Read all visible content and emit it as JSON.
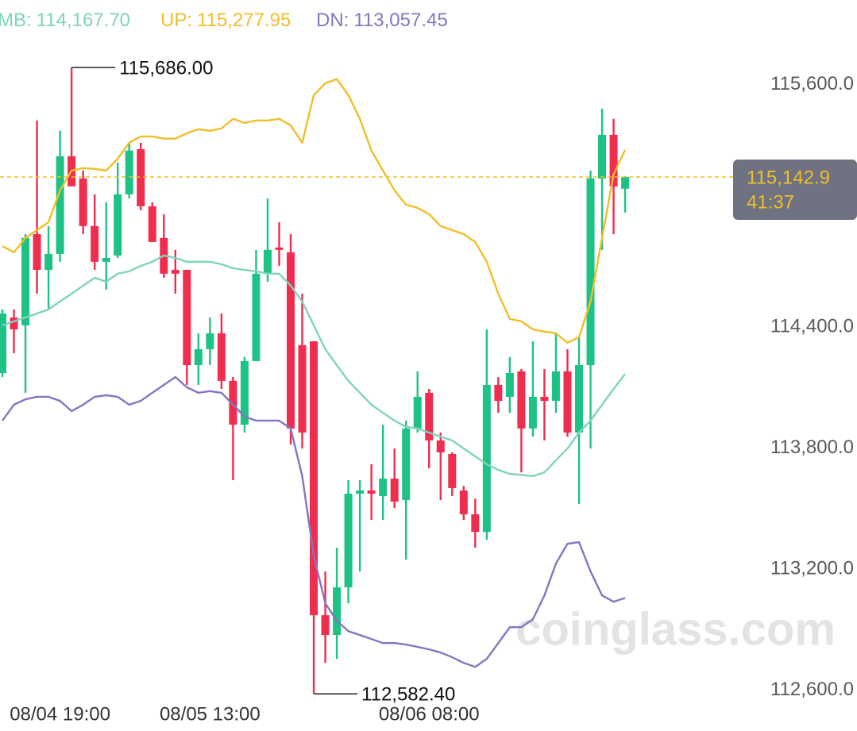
{
  "chart_data": {
    "type": "candlestick",
    "categories": [
      null,
      null,
      null,
      null,
      null,
      "08/04 19:00",
      null,
      null,
      null,
      null,
      null,
      null,
      null,
      null,
      null,
      null,
      null,
      null,
      "08/05 13:00",
      null,
      null,
      null,
      null,
      null,
      null,
      null,
      null,
      null,
      null,
      null,
      null,
      null,
      null,
      null,
      null,
      null,
      null,
      "08/06 08:00",
      null,
      null,
      null,
      null,
      null,
      null,
      null,
      null,
      null,
      null,
      null,
      null,
      null,
      null,
      null,
      null,
      null
    ],
    "open": [
      114172,
      114447,
      114408,
      114860,
      114683,
      114762,
      115246,
      115136,
      114900,
      114723,
      114754,
      115057,
      115281,
      114998,
      114841,
      114683,
      114683,
      114211,
      114290,
      114369,
      114133,
      113916,
      114231,
      114664,
      114794,
      114770,
      114310,
      114329,
      112972,
      112874,
      113110,
      113574,
      113590,
      113562,
      113649,
      113543,
      113897,
      114074,
      113838,
      113771,
      113590,
      113472,
      113385,
      114113,
      114054,
      114180,
      113897,
      114054,
      114034,
      114180,
      113877,
      114211,
      115136,
      115352,
      115085
    ],
    "high": [
      114487,
      114487,
      114860,
      115423,
      114900,
      115372,
      115686,
      115175,
      115057,
      115018,
      115215,
      115313,
      115313,
      115018,
      114959,
      114782,
      114683,
      114369,
      114447,
      114467,
      114152,
      114251,
      114782,
      115037,
      114919,
      114860,
      114565,
      114329,
      113189,
      113307,
      113641,
      113641,
      113720,
      113916,
      113798,
      113936,
      114180,
      114093,
      113877,
      113779,
      113613,
      113550,
      114388,
      114152,
      114251,
      114192,
      114329,
      114192,
      114369,
      114290,
      114349,
      115175,
      115482,
      115431,
      115148
    ],
    "low": [
      114152,
      114270,
      114074,
      114565,
      114487,
      114723,
      115097,
      114860,
      114683,
      114585,
      114742,
      115037,
      114978,
      114821,
      114644,
      114565,
      114113,
      114113,
      114211,
      114093,
      113641,
      113877,
      114231,
      114624,
      114703,
      113818,
      113798,
      112582.4,
      112736,
      112756,
      113031,
      113189,
      113444,
      113444,
      113503,
      113248,
      113877,
      113700,
      113543,
      113562,
      113444,
      113307,
      113346,
      113975,
      113975,
      113680,
      113857,
      113838,
      113975,
      113857,
      113523,
      113798,
      114782,
      114860,
      114967
    ],
    "close": [
      114467,
      114388,
      114841,
      114683,
      114762,
      115246,
      115097,
      114900,
      114723,
      114742,
      115057,
      115274,
      114998,
      114821,
      114664,
      114664,
      114211,
      114290,
      114369,
      114133,
      113916,
      114231,
      114664,
      114782,
      114782,
      113897,
      113877,
      112972,
      112874,
      113110,
      113574,
      113590,
      113574,
      113649,
      113535,
      113897,
      114054,
      113838,
      113779,
      113602,
      113472,
      113385,
      114113,
      114034,
      114172,
      113897,
      114054,
      114034,
      114180,
      113877,
      114211,
      115136,
      115352,
      115097,
      115142.9
    ],
    "up_color": "#1ec285",
    "down_color": "#ee2d4f",
    "series": [
      {
        "name": "MB:",
        "last_value_label": "114,167.70",
        "color": "#7fd4b9",
        "values": [
          114408,
          114428,
          114447,
          114467,
          114487,
          114526,
          114565,
          114605,
          114644,
          114624,
          114664,
          114676,
          114703,
          114723,
          114754,
          114742,
          114723,
          114723,
          114723,
          114711,
          114691,
          114683,
          114676,
          114664,
          114664,
          114605,
          114526,
          114408,
          114290,
          114211,
          114133,
          114074,
          114015,
          113975,
          113936,
          113905,
          113897,
          113877,
          113857,
          113838,
          113798,
          113759,
          113720,
          113692,
          113672,
          113668,
          113661,
          113680,
          113739,
          113798,
          113877,
          113936,
          114015,
          114093,
          114167.7
        ]
      },
      {
        "name": "UP:",
        "last_value_label": "115,277.95",
        "color": "#f0bf27",
        "values": [
          114801,
          114770,
          114841,
          114880,
          114919,
          115077,
          115175,
          115187,
          115183,
          115175,
          115234,
          115313,
          115344,
          115344,
          115333,
          115333,
          115360,
          115380,
          115372,
          115384,
          115431,
          115411,
          115423,
          115423,
          115431,
          115399,
          115313,
          115549,
          115608,
          115628,
          115549,
          115431,
          115274,
          115175,
          115077,
          115006,
          114990,
          114959,
          114900,
          114880,
          114860,
          114821,
          114723,
          114565,
          114440,
          114428,
          114388,
          114377,
          114369,
          114322,
          114349,
          114526,
          114841,
          115156,
          115277.95
        ]
      },
      {
        "name": "DN:",
        "last_value_label": "113,057.45",
        "color": "#8675c2",
        "values": [
          113936,
          114015,
          114042,
          114054,
          114054,
          114034,
          113983,
          114015,
          114054,
          114062,
          114054,
          114015,
          114034,
          114074,
          114113,
          114152,
          114101,
          114074,
          114082,
          114074,
          114015,
          113956,
          113936,
          113936,
          113936,
          113897,
          113661,
          113267,
          113031,
          112945,
          112893,
          112874,
          112854,
          112834,
          112834,
          112827,
          112815,
          112803,
          112787,
          112764,
          112736,
          112716,
          112756,
          112834,
          112913,
          112913,
          112952,
          113070,
          113228,
          113326,
          113334,
          113189,
          113070,
          113039,
          113057.45
        ]
      }
    ],
    "high_label": "115,686.00",
    "low_label": "112,582.40",
    "price_label": "115,142.9",
    "countdown": "41:37",
    "watermark": "coinglass.com",
    "ylim": [
      112540,
      116020
    ],
    "yticks": [
      {
        "value": 112600,
        "label": "112,600.0"
      },
      {
        "value": 113200,
        "label": "113,200.0"
      },
      {
        "value": 113800,
        "label": "113,800.0"
      },
      {
        "value": 114400,
        "label": "114,400.0"
      },
      {
        "value": 115600,
        "label": "115,600.0"
      }
    ],
    "grid": false
  }
}
